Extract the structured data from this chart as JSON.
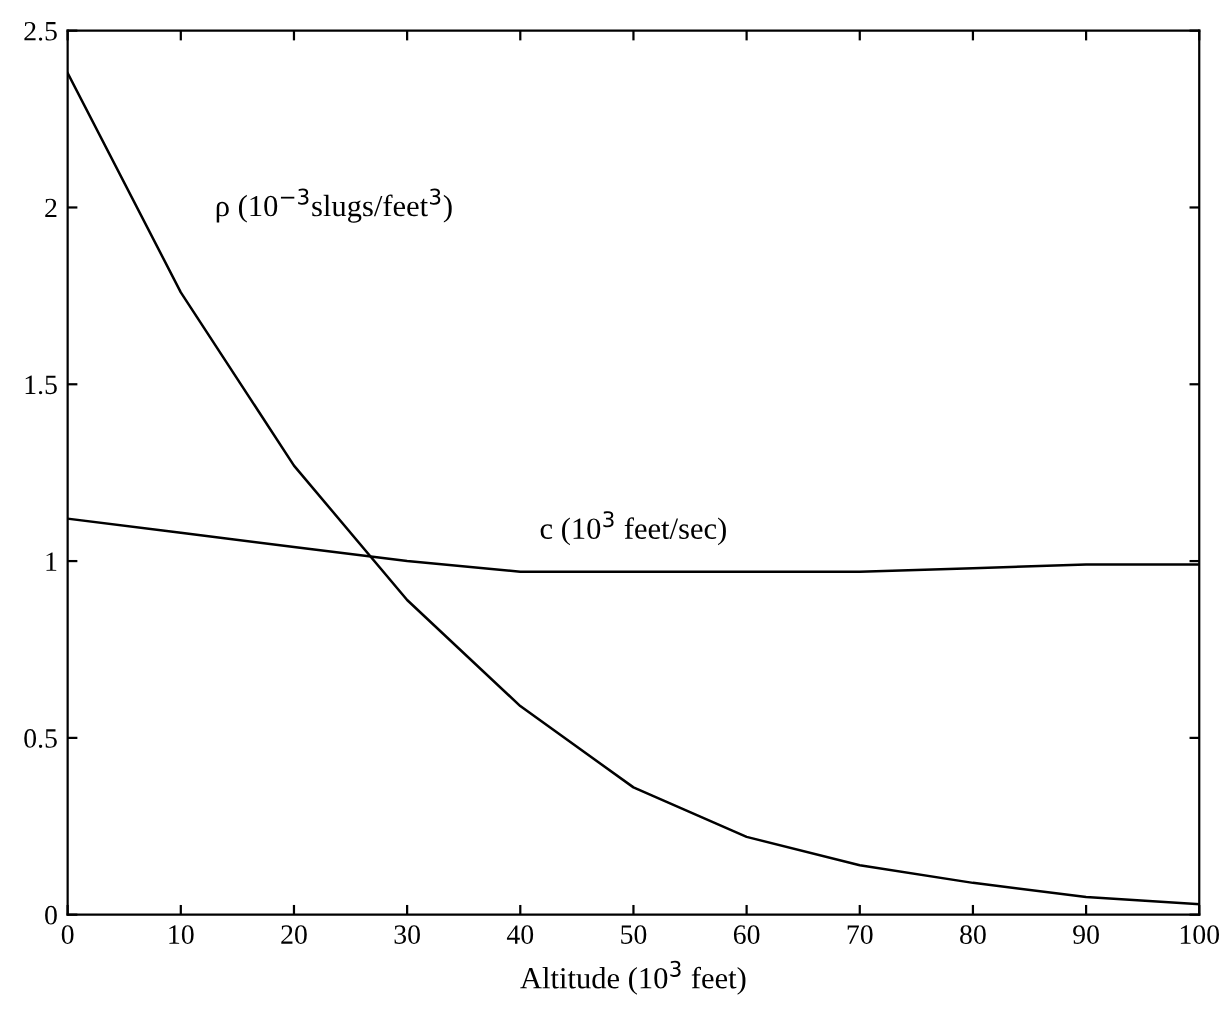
{
  "chart_data": {
    "type": "line",
    "xlabel": "Altitude (10$^{3}$ feet)",
    "x": [
      0,
      10,
      20,
      30,
      40,
      50,
      60,
      70,
      80,
      90,
      100
    ],
    "series": [
      {
        "name": "ρ (10$^{−3}$slugs/feet$^{3}$)",
        "color": "#000000",
        "values": [
          2.38,
          1.76,
          1.27,
          0.89,
          0.59,
          0.36,
          0.22,
          0.14,
          0.09,
          0.05,
          0.03
        ]
      },
      {
        "name": "c (10$^{3}$ feet/sec)",
        "color": "#000000",
        "values": [
          1.12,
          1.08,
          1.04,
          1.0,
          0.97,
          0.97,
          0.97,
          0.97,
          0.98,
          0.99,
          0.99
        ]
      }
    ],
    "xlim": [
      0,
      100
    ],
    "xticks": [
      0,
      10,
      20,
      30,
      40,
      50,
      60,
      70,
      80,
      90,
      100
    ],
    "ylim": [
      0,
      2.5
    ],
    "yticks": [
      0,
      0.5,
      1,
      1.5,
      2,
      2.5
    ],
    "grid": false,
    "legend": false,
    "marker": "none",
    "line_style": "solid"
  }
}
